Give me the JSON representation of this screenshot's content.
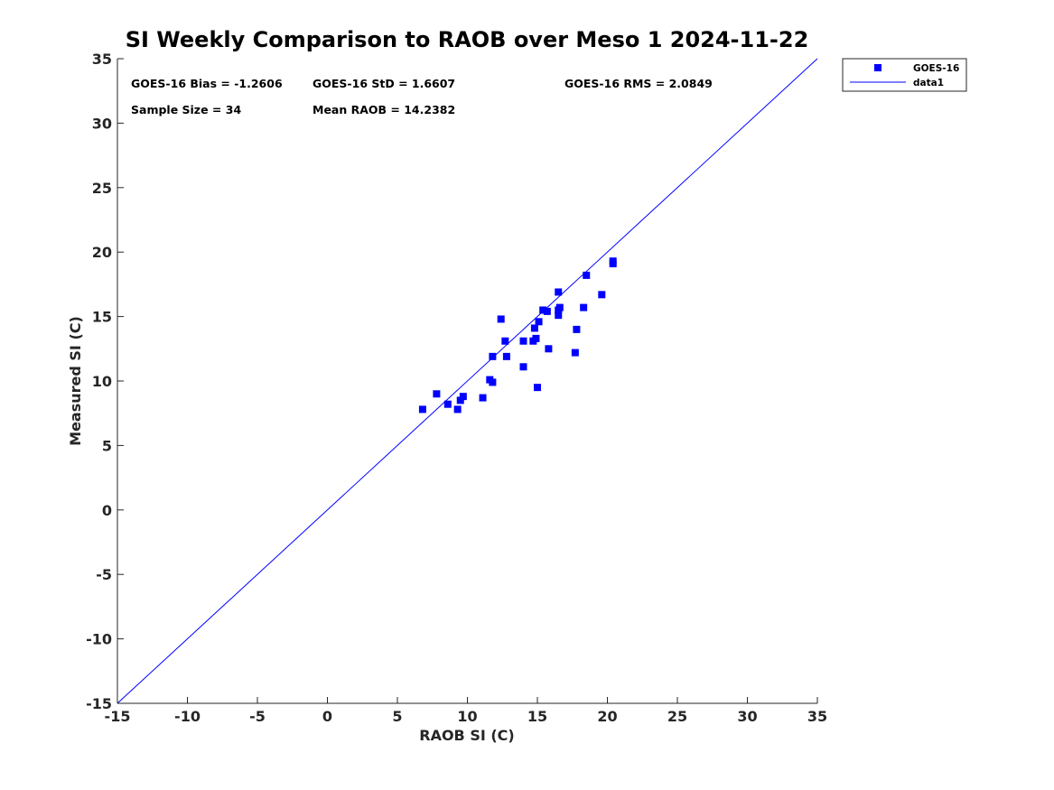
{
  "chart_data": {
    "type": "scatter",
    "title": "SI Weekly Comparison to RAOB over Meso 1 2024-11-22",
    "xlabel": "RAOB SI (C)",
    "ylabel": "Measured SI (C)",
    "xlim": [
      -15,
      35
    ],
    "ylim": [
      -15,
      35
    ],
    "xticks": [
      -15,
      -10,
      -5,
      0,
      5,
      10,
      15,
      20,
      25,
      30,
      35
    ],
    "yticks": [
      -15,
      -10,
      -5,
      0,
      5,
      10,
      15,
      20,
      25,
      30,
      35
    ],
    "grid": false,
    "legend_position": "outside-top-right",
    "series": [
      {
        "name": "GOES-16",
        "marker": "square",
        "color": "#0000ff",
        "points": [
          [
            6.8,
            7.8
          ],
          [
            7.8,
            9.0
          ],
          [
            8.6,
            8.2
          ],
          [
            9.3,
            7.8
          ],
          [
            9.5,
            8.5
          ],
          [
            9.7,
            8.8
          ],
          [
            11.1,
            8.7
          ],
          [
            11.6,
            10.1
          ],
          [
            11.8,
            9.9
          ],
          [
            11.8,
            11.9
          ],
          [
            12.4,
            14.8
          ],
          [
            12.7,
            13.1
          ],
          [
            12.8,
            11.9
          ],
          [
            14.0,
            11.1
          ],
          [
            14.0,
            13.1
          ],
          [
            14.7,
            13.1
          ],
          [
            14.8,
            14.1
          ],
          [
            14.9,
            13.3
          ],
          [
            15.0,
            9.5
          ],
          [
            15.1,
            14.6
          ],
          [
            15.4,
            15.5
          ],
          [
            15.7,
            15.4
          ],
          [
            15.8,
            12.5
          ],
          [
            16.5,
            16.9
          ],
          [
            16.5,
            15.1
          ],
          [
            16.5,
            15.5
          ],
          [
            16.6,
            15.7
          ],
          [
            17.7,
            12.2
          ],
          [
            17.8,
            14.0
          ],
          [
            18.3,
            15.7
          ],
          [
            18.5,
            18.2
          ],
          [
            19.6,
            16.7
          ],
          [
            20.4,
            19.1
          ],
          [
            20.4,
            19.3
          ]
        ]
      },
      {
        "name": "data1",
        "type": "line",
        "color": "#0000ff",
        "points": [
          [
            -15,
            -15
          ],
          [
            35,
            35
          ]
        ]
      }
    ],
    "annotations": [
      "GOES-16 Bias = -1.2606",
      "GOES-16 StD = 1.6607",
      "GOES-16 RMS = 2.0849",
      "Sample Size = 34",
      "Mean RAOB = 14.2382"
    ]
  }
}
